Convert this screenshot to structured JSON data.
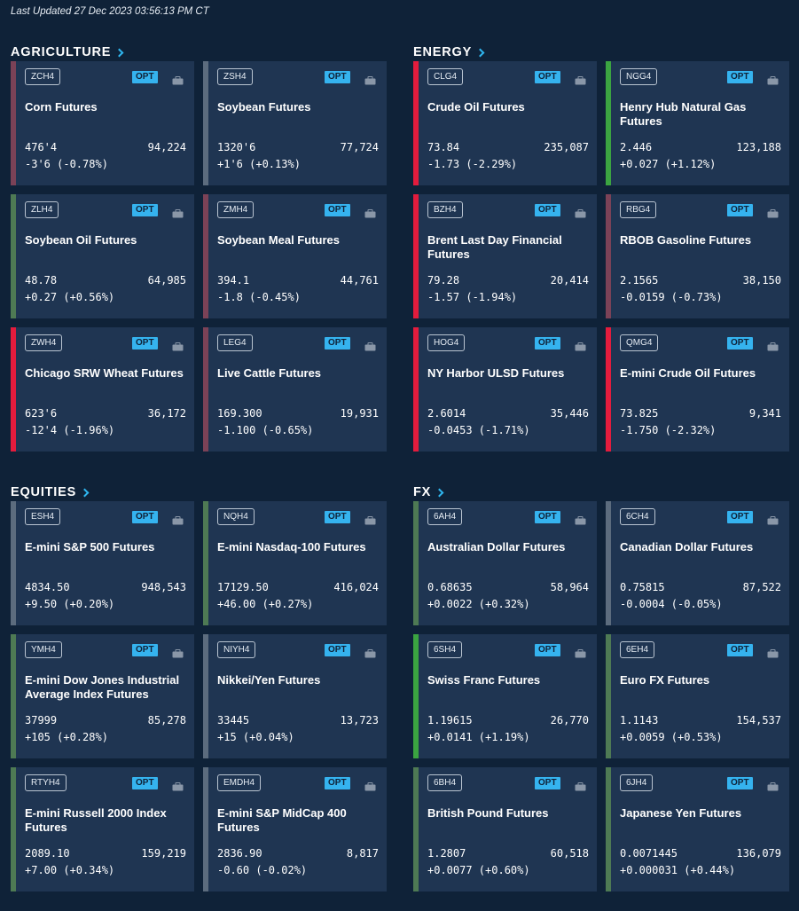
{
  "last_updated": "Last Updated 27 Dec 2023 03:56:13 PM CT",
  "sections": [
    {
      "title": "AGRICULTURE",
      "cards": [
        {
          "code": "ZCH4",
          "opt": "OPT",
          "name": "Corn Futures",
          "price": "476'4",
          "volume": "94,224",
          "change": "-3'6 (-0.78%)",
          "status": "flat-down"
        },
        {
          "code": "ZSH4",
          "opt": "OPT",
          "name": "Soybean Futures",
          "price": "1320'6",
          "volume": "77,724",
          "change": "+1'6 (+0.13%)",
          "status": "neutral"
        },
        {
          "code": "ZLH4",
          "opt": "OPT",
          "name": "Soybean Oil Futures",
          "price": "48.78",
          "volume": "64,985",
          "change": "+0.27 (+0.56%)",
          "status": "flat-up"
        },
        {
          "code": "ZMH4",
          "opt": "OPT",
          "name": "Soybean Meal Futures",
          "price": "394.1",
          "volume": "44,761",
          "change": "-1.8 (-0.45%)",
          "status": "flat-down"
        },
        {
          "code": "ZWH4",
          "opt": "OPT",
          "name": "Chicago SRW Wheat Futures",
          "price": "623'6",
          "volume": "36,172",
          "change": "-12'4 (-1.96%)",
          "status": "down"
        },
        {
          "code": "LEG4",
          "opt": "OPT",
          "name": "Live Cattle Futures",
          "price": "169.300",
          "volume": "19,931",
          "change": "-1.100 (-0.65%)",
          "status": "flat-down"
        }
      ]
    },
    {
      "title": "ENERGY",
      "cards": [
        {
          "code": "CLG4",
          "opt": "OPT",
          "name": "Crude Oil Futures",
          "price": "73.84",
          "volume": "235,087",
          "change": "-1.73 (-2.29%)",
          "status": "down"
        },
        {
          "code": "NGG4",
          "opt": "OPT",
          "name": "Henry Hub Natural Gas Futures",
          "price": "2.446",
          "volume": "123,188",
          "change": "+0.027 (+1.12%)",
          "status": "up"
        },
        {
          "code": "BZH4",
          "opt": "OPT",
          "name": "Brent Last Day Financial Futures",
          "price": "79.28",
          "volume": "20,414",
          "change": "-1.57 (-1.94%)",
          "status": "down"
        },
        {
          "code": "RBG4",
          "opt": "OPT",
          "name": "RBOB Gasoline Futures",
          "price": "2.1565",
          "volume": "38,150",
          "change": "-0.0159 (-0.73%)",
          "status": "flat-down"
        },
        {
          "code": "HOG4",
          "opt": "OPT",
          "name": "NY Harbor ULSD Futures",
          "price": "2.6014",
          "volume": "35,446",
          "change": "-0.0453 (-1.71%)",
          "status": "down"
        },
        {
          "code": "QMG4",
          "opt": "OPT",
          "name": "E-mini Crude Oil Futures",
          "price": "73.825",
          "volume": "9,341",
          "change": "-1.750 (-2.32%)",
          "status": "down"
        }
      ]
    },
    {
      "title": "EQUITIES",
      "cards": [
        {
          "code": "ESH4",
          "opt": "OPT",
          "name": "E-mini S&P 500 Futures",
          "price": "4834.50",
          "volume": "948,543",
          "change": "+9.50 (+0.20%)",
          "status": "neutral"
        },
        {
          "code": "NQH4",
          "opt": "OPT",
          "name": "E-mini Nasdaq-100 Futures",
          "price": "17129.50",
          "volume": "416,024",
          "change": "+46.00 (+0.27%)",
          "status": "flat-up"
        },
        {
          "code": "YMH4",
          "opt": "OPT",
          "name": "E-mini Dow Jones Industrial Average Index Futures",
          "price": "37999",
          "volume": "85,278",
          "change": "+105 (+0.28%)",
          "status": "flat-up"
        },
        {
          "code": "NIYH4",
          "opt": "OPT",
          "name": "Nikkei/Yen Futures",
          "price": "33445",
          "volume": "13,723",
          "change": "+15 (+0.04%)",
          "status": "neutral"
        },
        {
          "code": "RTYH4",
          "opt": "OPT",
          "name": "E-mini  Russell 2000 Index Futures",
          "price": "2089.10",
          "volume": "159,219",
          "change": "+7.00 (+0.34%)",
          "status": "flat-up"
        },
        {
          "code": "EMDH4",
          "opt": "OPT",
          "name": "E-mini S&P MidCap 400 Futures",
          "price": "2836.90",
          "volume": "8,817",
          "change": "-0.60 (-0.02%)",
          "status": "neutral"
        }
      ]
    },
    {
      "title": "FX",
      "cards": [
        {
          "code": "6AH4",
          "opt": "OPT",
          "name": "Australian Dollar Futures",
          "price": "0.68635",
          "volume": "58,964",
          "change": "+0.0022 (+0.32%)",
          "status": "flat-up"
        },
        {
          "code": "6CH4",
          "opt": "OPT",
          "name": "Canadian Dollar Futures",
          "price": "0.75815",
          "volume": "87,522",
          "change": "-0.0004 (-0.05%)",
          "status": "neutral"
        },
        {
          "code": "6SH4",
          "opt": "OPT",
          "name": "Swiss Franc Futures",
          "price": "1.19615",
          "volume": "26,770",
          "change": "+0.0141 (+1.19%)",
          "status": "up"
        },
        {
          "code": "6EH4",
          "opt": "OPT",
          "name": "Euro FX Futures",
          "price": "1.1143",
          "volume": "154,537",
          "change": "+0.0059 (+0.53%)",
          "status": "flat-up"
        },
        {
          "code": "6BH4",
          "opt": "OPT",
          "name": "British Pound Futures",
          "price": "1.2807",
          "volume": "60,518",
          "change": "+0.0077 (+0.60%)",
          "status": "flat-up"
        },
        {
          "code": "6JH4",
          "opt": "OPT",
          "name": "Japanese Yen Futures",
          "price": "0.0071445",
          "volume": "136,079",
          "change": "+0.000031 (+0.44%)",
          "status": "flat-up"
        }
      ]
    }
  ],
  "colors": {
    "background": "#0f2238",
    "card": "#1f3552",
    "accent": "#35b3ef",
    "up": "#3ba441",
    "down": "#e31c3d"
  }
}
